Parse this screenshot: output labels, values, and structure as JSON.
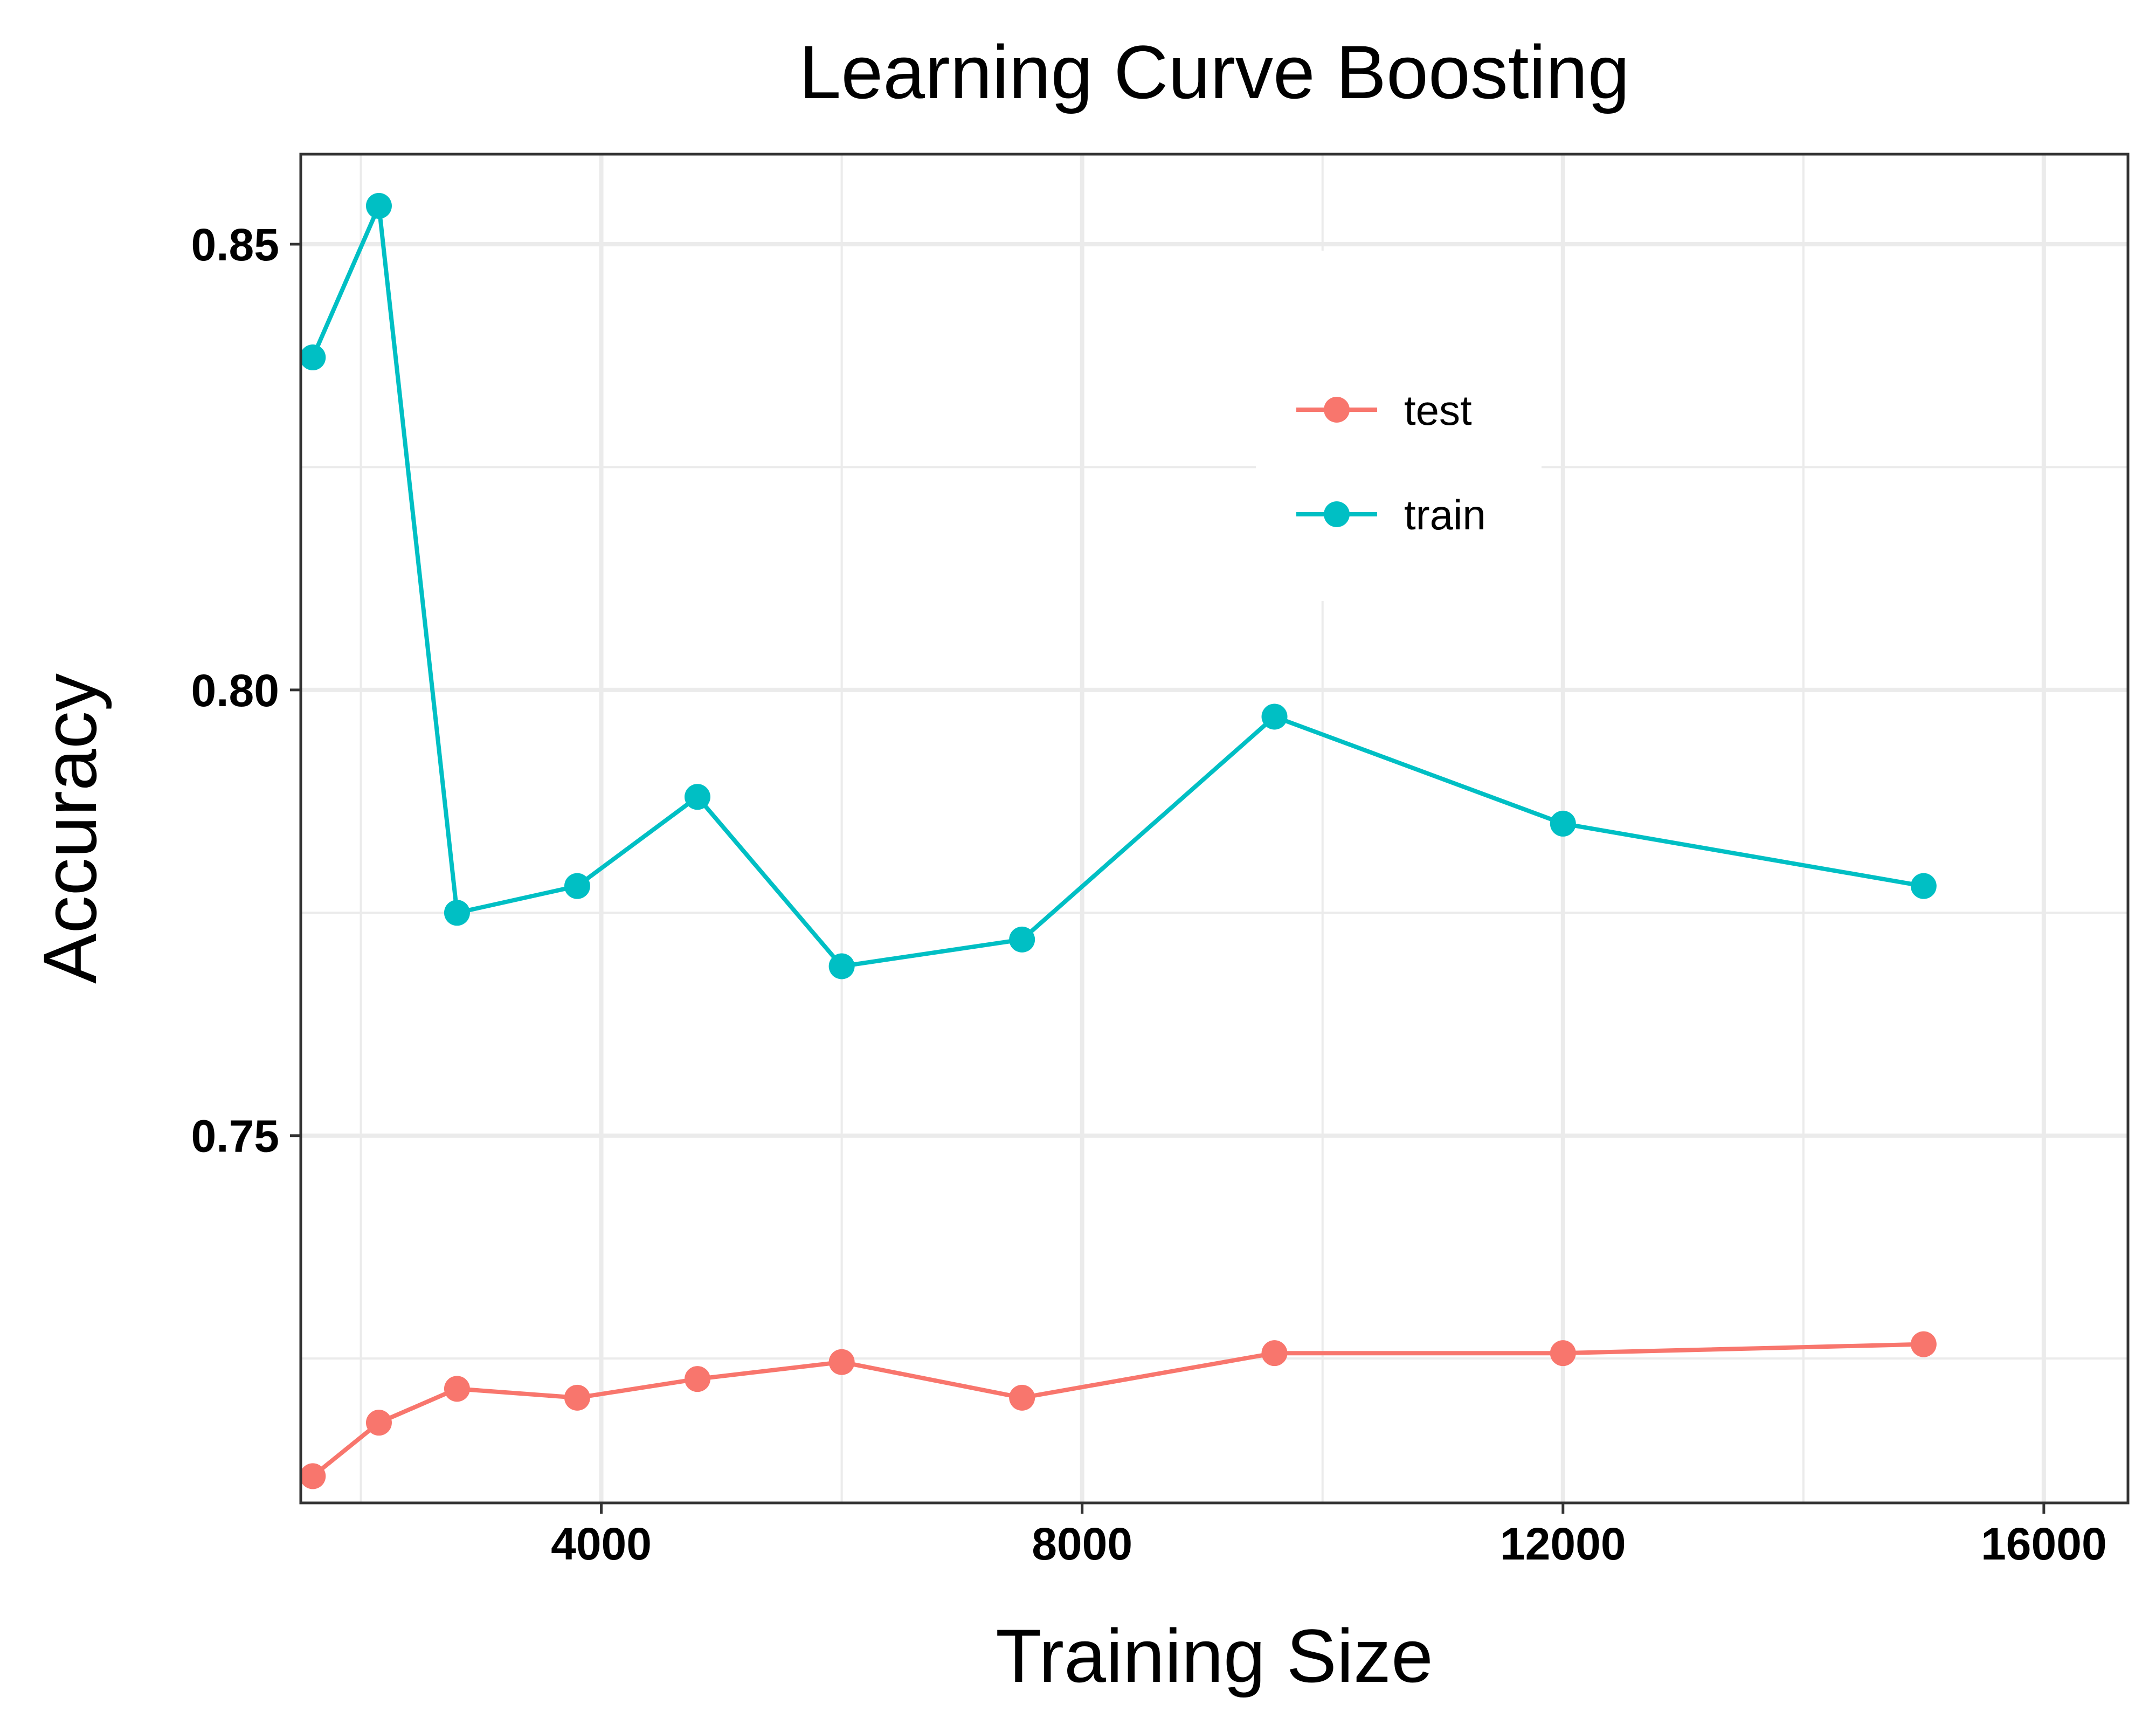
{
  "colors": {
    "test": "#F8766D",
    "train": "#00BFC4",
    "grid": "#EBEBEB",
    "panel_border": "#333333",
    "background": "#FFFFFF"
  },
  "chart_data": {
    "type": "line",
    "title": "Learning Curve Boosting",
    "xlabel": "Training Size",
    "ylabel": "Accuracy",
    "xlim": [
      1500,
      16700
    ],
    "ylim": [
      0.7088,
      0.8601
    ],
    "x_ticks": [
      4000,
      8000,
      12000,
      16000
    ],
    "x_tick_labels": [
      "4000",
      "8000",
      "12000",
      "16000"
    ],
    "x_minor_ticks": [
      2000,
      6000,
      10000,
      14000
    ],
    "y_ticks": [
      0.75,
      0.8,
      0.85
    ],
    "y_tick_labels": [
      "0.75",
      "0.80",
      "0.85"
    ],
    "y_minor_ticks": [
      0.725,
      0.775,
      0.825
    ],
    "grid": true,
    "legend_position": "top-right",
    "markers": true,
    "series": [
      {
        "name": "test",
        "x": [
          1600,
          2150,
          2800,
          3800,
          4800,
          6000,
          7500,
          9600,
          12000,
          15000
        ],
        "y": [
          0.7118,
          0.7178,
          0.7216,
          0.7206,
          0.7227,
          0.7246,
          0.7206,
          0.7256,
          0.7256,
          0.7266
        ]
      },
      {
        "name": "train",
        "x": [
          1600,
          2150,
          2800,
          3800,
          4800,
          6000,
          7500,
          9600,
          12000,
          15000
        ],
        "y": [
          0.8373,
          0.8543,
          0.775,
          0.778,
          0.788,
          0.769,
          0.772,
          0.797,
          0.785,
          0.778
        ]
      }
    ]
  }
}
